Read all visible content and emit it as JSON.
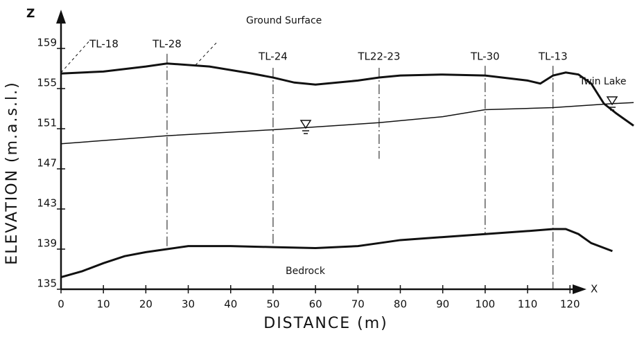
{
  "chart_data": {
    "type": "line",
    "annotations": {
      "ground": "Ground Surface",
      "bedrock": "Bedrock",
      "lake": "Twin Lake"
    },
    "y_axis_letter": "Z",
    "x_axis_letter": "X",
    "ylabel": "ELEVATION (m.a.s.l.)",
    "xlabel": "DISTANCE (m)",
    "xlim": [
      0,
      135
    ],
    "ylim": [
      135,
      159
    ],
    "xticks": [
      0,
      10,
      20,
      30,
      40,
      50,
      60,
      70,
      80,
      90,
      100,
      110,
      120
    ],
    "yticks": [
      135,
      139,
      143,
      147,
      151,
      155,
      159
    ],
    "series": [
      {
        "name": "Ground Surface",
        "color": "#111111",
        "x": [
          0,
          10,
          20,
          25,
          35,
          45,
          50,
          55,
          60,
          70,
          75,
          80,
          90,
          100,
          110,
          113,
          116,
          119,
          122,
          125,
          128,
          131,
          135
        ],
        "values": [
          156.5,
          156.7,
          157.2,
          157.5,
          157.2,
          156.5,
          156.1,
          155.6,
          155.4,
          155.8,
          156.1,
          156.3,
          156.4,
          156.3,
          155.8,
          155.5,
          156.3,
          156.6,
          156.4,
          155.5,
          153.5,
          152.5,
          151.3
        ]
      },
      {
        "name": "Water Table",
        "color": "#111111",
        "x": [
          0,
          25,
          50,
          75,
          90,
          100,
          116,
          130,
          135
        ],
        "values": [
          149.5,
          150.3,
          150.9,
          151.6,
          152.2,
          152.9,
          153.1,
          153.5,
          153.6
        ]
      },
      {
        "name": "Bedrock",
        "color": "#111111",
        "x": [
          0,
          5,
          10,
          15,
          20,
          25,
          30,
          40,
          50,
          60,
          70,
          75,
          80,
          90,
          100,
          110,
          116,
          119,
          122,
          125,
          130
        ],
        "values": [
          136.2,
          136.8,
          137.6,
          138.3,
          138.7,
          139.0,
          139.3,
          139.3,
          139.2,
          139.1,
          139.3,
          139.6,
          139.9,
          140.2,
          140.5,
          140.8,
          141.0,
          141.0,
          140.5,
          139.6,
          138.8
        ]
      }
    ],
    "boreholes": [
      {
        "name": "TL-18",
        "x": 0,
        "top": 156.5,
        "bottom": 135
      },
      {
        "name": "TL-28",
        "x": 25,
        "top": 157.5,
        "bottom": 139
      },
      {
        "name": "TL-24",
        "x": 50,
        "top": 156.1,
        "bottom": 139.2
      },
      {
        "name": "TL22-23",
        "x": 75,
        "top": 156.1,
        "bottom": 148
      },
      {
        "name": "TL-30",
        "x": 100,
        "top": 156.3,
        "bottom": 140.5
      },
      {
        "name": "TL-13",
        "x": 116,
        "top": 156.3,
        "bottom": 135
      }
    ]
  }
}
